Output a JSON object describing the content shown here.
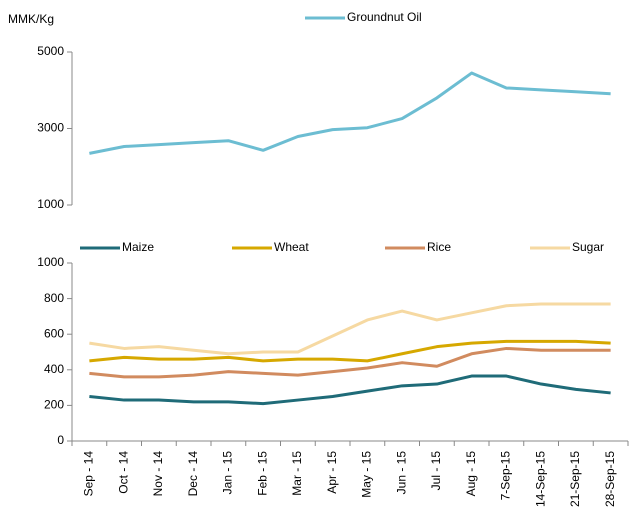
{
  "chart_data": [
    {
      "type": "line",
      "y_label": "MMK/Kg",
      "categories": [
        null,
        null,
        null,
        null,
        null,
        null,
        null,
        null,
        null,
        null,
        null,
        null,
        null,
        null,
        null,
        null
      ],
      "series": [
        {
          "name": "Groundnut Oil",
          "color": "#6cbdd2",
          "values": [
            2350,
            2530,
            2580,
            2630,
            2680,
            2430,
            2790,
            2970,
            3020,
            3260,
            3800,
            4450,
            4060,
            4010,
            3960,
            3910
          ]
        }
      ],
      "ylim": [
        1000,
        5000
      ],
      "yticks": [
        1000,
        3000,
        5000
      ]
    },
    {
      "type": "line",
      "categories": [
        "Sep - 14",
        "Oct - 14",
        "Nov - 14",
        "Dec - 14",
        "Jan - 15",
        "Feb - 15",
        "Mar - 15",
        "Apr - 15",
        "May - 15",
        "Jun - 15",
        "Jul - 15",
        "Aug - 15",
        "7-Sep-15",
        "14-Sep-15",
        "21-Sep-15",
        "28-Sep-15"
      ],
      "series": [
        {
          "name": "Maize",
          "color": "#1f6b78",
          "values": [
            250,
            230,
            230,
            220,
            220,
            210,
            230,
            250,
            280,
            310,
            320,
            365,
            365,
            320,
            290,
            270
          ]
        },
        {
          "name": "Wheat",
          "color": "#d6a800",
          "values": [
            450,
            470,
            460,
            460,
            470,
            450,
            460,
            460,
            450,
            490,
            530,
            550,
            560,
            560,
            560,
            550
          ]
        },
        {
          "name": "Rice",
          "color": "#d18b5f",
          "values": [
            380,
            360,
            360,
            370,
            390,
            380,
            370,
            390,
            410,
            440,
            420,
            490,
            520,
            510,
            510,
            510
          ]
        },
        {
          "name": "Sugar",
          "color": "#f6d9a2",
          "values": [
            550,
            520,
            530,
            510,
            490,
            500,
            500,
            590,
            680,
            730,
            680,
            720,
            760,
            770,
            770,
            770
          ]
        }
      ],
      "ylim": [
        0,
        1000
      ],
      "yticks": [
        0,
        200,
        400,
        600,
        800,
        1000
      ]
    }
  ]
}
